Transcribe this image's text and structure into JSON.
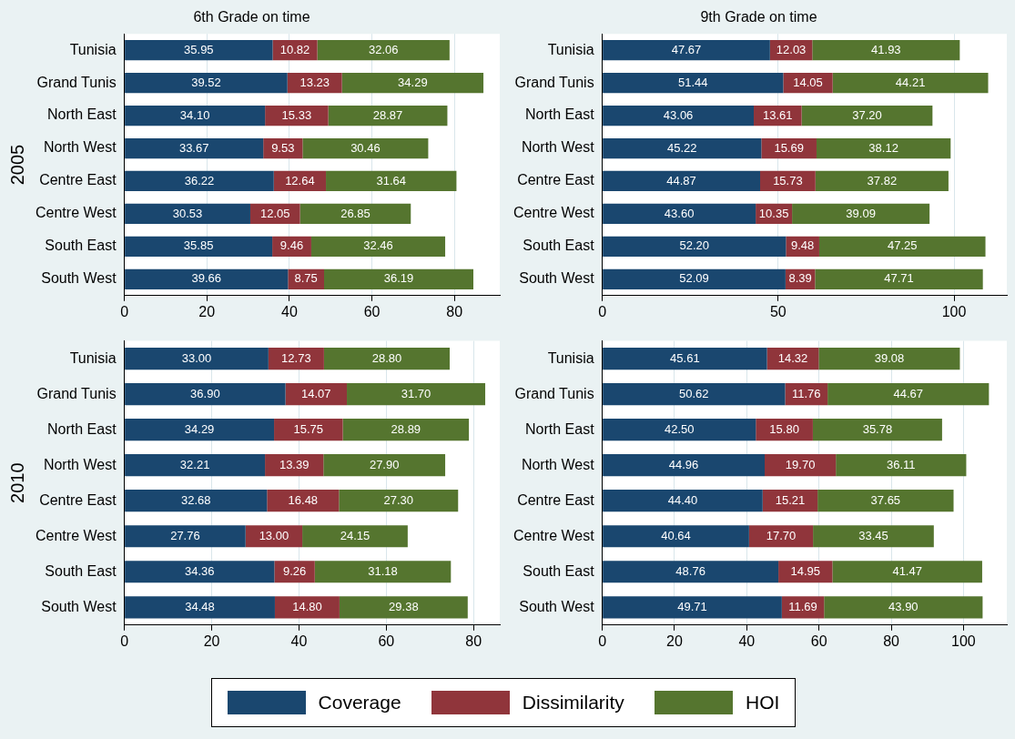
{
  "chart_data": [
    {
      "type": "bar",
      "orientation": "horizontal",
      "stacked": true,
      "title": "6th Grade on time",
      "ylabel": "2005",
      "categories": [
        "Tunisia",
        "Grand Tunis",
        "North East",
        "North West",
        "Centre East",
        "Centre West",
        "South East",
        "South West"
      ],
      "xlim": [
        0,
        91
      ],
      "xticks": [
        0,
        20,
        40,
        60,
        80
      ],
      "grid": "x",
      "legend": "bottom",
      "series": [
        {
          "name": "Coverage",
          "color": "#1a476f",
          "values": [
            35.95,
            39.52,
            34.1,
            33.67,
            36.22,
            30.53,
            35.85,
            39.66
          ],
          "value_labels": [
            "35.95",
            "39.52",
            "34.10",
            "33.67",
            "36.22",
            "30.53",
            "35.85",
            "39.66"
          ]
        },
        {
          "name": "Dissimilarity",
          "color": "#90353b",
          "values": [
            10.82,
            13.23,
            15.33,
            9.53,
            12.64,
            12.05,
            9.46,
            8.75
          ],
          "value_labels": [
            "10.82",
            "13.23",
            "15.33",
            "9.53",
            "12.64",
            "12.05",
            "9.46",
            "8.75"
          ]
        },
        {
          "name": "HOI",
          "color": "#55752f",
          "values": [
            32.06,
            34.29,
            28.87,
            30.46,
            31.64,
            26.85,
            32.46,
            36.19
          ],
          "value_labels": [
            "32.06",
            "34.29",
            "28.87",
            "30.46",
            "31.64",
            "26.85",
            "32.46",
            "36.19"
          ]
        }
      ]
    },
    {
      "type": "bar",
      "orientation": "horizontal",
      "stacked": true,
      "title": "9th Grade on time",
      "categories": [
        "Tunisia",
        "Grand Tunis",
        "North East",
        "North West",
        "Centre East",
        "Centre West",
        "South East",
        "South West"
      ],
      "xlim": [
        0,
        115
      ],
      "xticks": [
        0,
        50,
        100
      ],
      "grid": "x",
      "series": [
        {
          "color": "#1a476f",
          "values": [
            47.67,
            51.44,
            43.06,
            45.22,
            44.87,
            43.6,
            52.2,
            52.09
          ],
          "value_labels": [
            "47.67",
            "51.44",
            "43.06",
            "45.22",
            "44.87",
            "43.60",
            "52.20",
            "52.09"
          ]
        },
        {
          "color": "#90353b",
          "values": [
            12.03,
            14.05,
            13.61,
            15.69,
            15.73,
            10.35,
            9.48,
            8.39
          ],
          "value_labels": [
            "12.03",
            "14.05",
            "13.61",
            "15.69",
            "15.73",
            "10.35",
            "9.48",
            "8.39"
          ]
        },
        {
          "color": "#55752f",
          "values": [
            41.93,
            44.21,
            37.2,
            38.12,
            37.82,
            39.09,
            47.25,
            47.71
          ],
          "value_labels": [
            "41.93",
            "44.21",
            "37.20",
            "38.12",
            "37.82",
            "39.09",
            "47.25",
            "47.71"
          ]
        }
      ]
    },
    {
      "type": "bar",
      "orientation": "horizontal",
      "stacked": true,
      "ylabel": "2010",
      "categories": [
        "Tunisia",
        "Grand Tunis",
        "North East",
        "North West",
        "Centre East",
        "Centre West",
        "South East",
        "South West"
      ],
      "xlim": [
        0,
        86
      ],
      "xticks": [
        0,
        20,
        40,
        60,
        80
      ],
      "grid": "x",
      "series": [
        {
          "color": "#1a476f",
          "values": [
            33.0,
            36.9,
            34.29,
            32.21,
            32.68,
            27.76,
            34.36,
            34.48
          ],
          "value_labels": [
            "33.00",
            "36.90",
            "34.29",
            "32.21",
            "32.68",
            "27.76",
            "34.36",
            "34.48"
          ]
        },
        {
          "color": "#90353b",
          "values": [
            12.73,
            14.07,
            15.75,
            13.39,
            16.48,
            13.0,
            9.26,
            14.8
          ],
          "value_labels": [
            "12.73",
            "14.07",
            "15.75",
            "13.39",
            "16.48",
            "13.00",
            "9.26",
            "14.80"
          ]
        },
        {
          "color": "#55752f",
          "values": [
            28.8,
            31.7,
            28.89,
            27.9,
            27.3,
            24.15,
            31.18,
            29.38
          ],
          "value_labels": [
            "28.80",
            "31.70",
            "28.89",
            "27.90",
            "27.30",
            "24.15",
            "31.18",
            "29.38"
          ]
        }
      ]
    },
    {
      "type": "bar",
      "orientation": "horizontal",
      "stacked": true,
      "categories": [
        "Tunisia",
        "Grand Tunis",
        "North East",
        "North West",
        "Centre East",
        "Centre West",
        "South East",
        "South West"
      ],
      "xlim": [
        0,
        112
      ],
      "xticks": [
        0,
        20,
        40,
        60,
        80,
        100
      ],
      "grid": "x",
      "series": [
        {
          "color": "#1a476f",
          "values": [
            45.61,
            50.62,
            42.5,
            44.96,
            44.4,
            40.64,
            48.76,
            49.71
          ],
          "value_labels": [
            "45.61",
            "50.62",
            "42.50",
            "44.96",
            "44.40",
            "40.64",
            "48.76",
            "49.71"
          ]
        },
        {
          "color": "#90353b",
          "values": [
            14.32,
            11.76,
            15.8,
            19.7,
            15.21,
            17.7,
            14.95,
            11.69
          ],
          "value_labels": [
            "14.32",
            "11.76",
            "15.80",
            "19.70",
            "15.21",
            "17.70",
            "14.95",
            "11.69"
          ]
        },
        {
          "color": "#55752f",
          "values": [
            39.08,
            44.67,
            35.78,
            36.11,
            37.65,
            33.45,
            41.47,
            43.9
          ],
          "value_labels": [
            "39.08",
            "44.67",
            "35.78",
            "36.11",
            "37.65",
            "33.45",
            "41.47",
            "43.90"
          ]
        }
      ]
    }
  ]
}
